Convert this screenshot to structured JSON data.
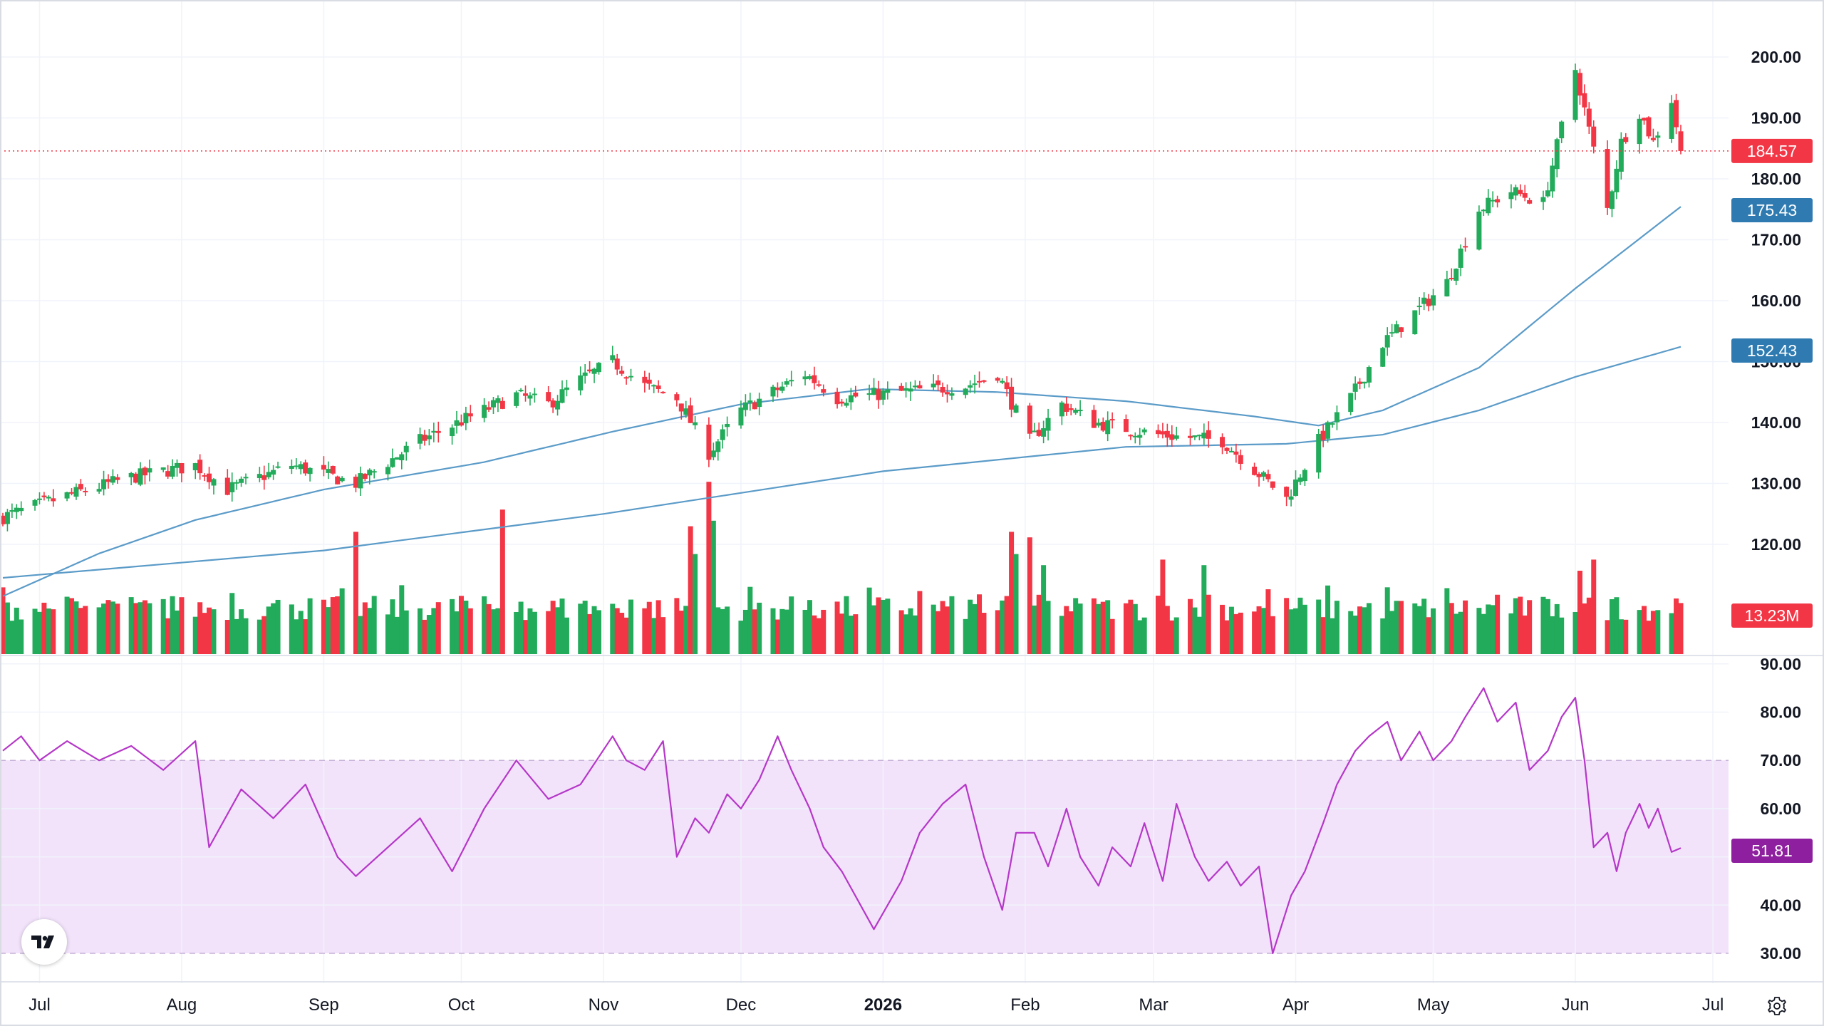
{
  "colors": {
    "up": "#22ab5a",
    "down": "#f23645",
    "ma_fast": "#5b9bc8",
    "ma_slow": "#5b9bc8",
    "rsi_line": "#b537c8",
    "rsi_band": "#f2e3fb",
    "last_price_badge": "#f23645",
    "ma_fast_badge": "#2f7bb1",
    "ma_slow_badge": "#2f7bb1",
    "volume_badge": "#f23645",
    "rsi_badge": "#8e1f9e",
    "grid": "#f0f3fa",
    "axis_text": "#131722"
  },
  "icons": {
    "logo": "tradingview-logo-icon",
    "settings": "gear-icon"
  },
  "chart_data": [
    {
      "type": "candlestick",
      "pane": "price",
      "time_range": [
        "2025-06-23",
        "2026-06-24"
      ],
      "ylim": [
        110,
        205
      ],
      "y_ticks": [
        "200.00",
        "190.00",
        "180.00",
        "170.00",
        "160.00",
        "150.00",
        "140.00",
        "130.00",
        "120.00"
      ],
      "grid": true,
      "last_price": "184.57",
      "ma_fast_value": "175.43",
      "ma_slow_value": "152.43",
      "anchors": [
        [
          "2025-06-23",
          124.5
        ],
        [
          "2025-07-07",
          128
        ],
        [
          "2025-07-21",
          131
        ],
        [
          "2025-08-04",
          133
        ],
        [
          "2025-08-11",
          129
        ],
        [
          "2025-08-25",
          133
        ],
        [
          "2025-09-08",
          130
        ],
        [
          "2025-09-22",
          137
        ],
        [
          "2025-10-06",
          142
        ],
        [
          "2025-10-13",
          144.5
        ],
        [
          "2025-10-20",
          143
        ],
        [
          "2025-10-27",
          147
        ],
        [
          "2025-11-03",
          150
        ],
        [
          "2025-11-10",
          146
        ],
        [
          "2025-11-17",
          144
        ],
        [
          "2025-11-24",
          135
        ],
        [
          "2025-12-01",
          142
        ],
        [
          "2025-12-15",
          148
        ],
        [
          "2025-12-22",
          144
        ],
        [
          "2026-01-05",
          145
        ],
        [
          "2026-01-19",
          146
        ],
        [
          "2026-01-26",
          148
        ],
        [
          "2026-02-02",
          137
        ],
        [
          "2026-02-09",
          143
        ],
        [
          "2026-02-16",
          140
        ],
        [
          "2026-03-02",
          138
        ],
        [
          "2026-03-16",
          137
        ],
        [
          "2026-03-30",
          127.5
        ],
        [
          "2026-04-06",
          137
        ],
        [
          "2026-04-13",
          144
        ],
        [
          "2026-04-20",
          153
        ],
        [
          "2026-05-04",
          163
        ],
        [
          "2026-05-11",
          175
        ],
        [
          "2026-05-18",
          178
        ],
        [
          "2026-05-25",
          176
        ],
        [
          "2026-06-01",
          198
        ],
        [
          "2026-06-04",
          188
        ],
        [
          "2026-06-08",
          175
        ],
        [
          "2026-06-11",
          186
        ],
        [
          "2026-06-15",
          191
        ],
        [
          "2026-06-18",
          186
        ],
        [
          "2026-06-22",
          193
        ],
        [
          "2026-06-24",
          184.57
        ]
      ],
      "ma_fast": [
        [
          "2025-06-23",
          111.5
        ],
        [
          "2025-07-14",
          118.5
        ],
        [
          "2025-08-04",
          124
        ],
        [
          "2025-09-01",
          129
        ],
        [
          "2025-10-06",
          133.5
        ],
        [
          "2025-11-03",
          138.5
        ],
        [
          "2025-12-01",
          143
        ],
        [
          "2025-12-29",
          145.5
        ],
        [
          "2026-01-26",
          145
        ],
        [
          "2026-02-23",
          143.5
        ],
        [
          "2026-03-23",
          141
        ],
        [
          "2026-04-06",
          139.5
        ],
        [
          "2026-04-20",
          142
        ],
        [
          "2026-05-11",
          149
        ],
        [
          "2026-06-01",
          162
        ],
        [
          "2026-06-24",
          175.43
        ]
      ],
      "ma_slow": [
        [
          "2025-06-23",
          114.5
        ],
        [
          "2025-09-01",
          119
        ],
        [
          "2025-11-01",
          125
        ],
        [
          "2026-01-01",
          132
        ],
        [
          "2026-02-23",
          136
        ],
        [
          "2026-03-30",
          136.5
        ],
        [
          "2026-04-20",
          138
        ],
        [
          "2026-05-11",
          142
        ],
        [
          "2026-06-01",
          147.5
        ],
        [
          "2026-06-24",
          152.43
        ]
      ]
    },
    {
      "type": "bar",
      "pane": "volume",
      "series_name": "Volume",
      "last_value": "13.23M",
      "units": "M",
      "spikes": [
        [
          "2025-09-08",
          22
        ],
        [
          "2025-10-10",
          26
        ],
        [
          "2025-11-20",
          23
        ],
        [
          "2025-11-21",
          18
        ],
        [
          "2025-11-24",
          31
        ],
        [
          "2025-11-25",
          24
        ],
        [
          "2026-01-29",
          22
        ],
        [
          "2026-01-30",
          18
        ],
        [
          "2026-02-02",
          21
        ],
        [
          "2026-02-05",
          16
        ],
        [
          "2026-03-03",
          17
        ],
        [
          "2026-03-12",
          16
        ],
        [
          "2026-06-02",
          15
        ],
        [
          "2026-06-05",
          17
        ]
      ]
    },
    {
      "type": "line",
      "pane": "rsi",
      "series_name": "RSI",
      "ylim": [
        28,
        93
      ],
      "y_ticks": [
        "90.00",
        "80.00",
        "70.00",
        "60.00",
        "50.00",
        "40.00",
        "30.00"
      ],
      "band": [
        30,
        70
      ],
      "last_value": "51.81",
      "values": [
        [
          "2025-06-23",
          72
        ],
        [
          "2025-06-27",
          75
        ],
        [
          "2025-07-01",
          70
        ],
        [
          "2025-07-07",
          74
        ],
        [
          "2025-07-14",
          70
        ],
        [
          "2025-07-21",
          73
        ],
        [
          "2025-07-28",
          68
        ],
        [
          "2025-08-04",
          74
        ],
        [
          "2025-08-07",
          52
        ],
        [
          "2025-08-14",
          64
        ],
        [
          "2025-08-21",
          58
        ],
        [
          "2025-08-28",
          65
        ],
        [
          "2025-09-04",
          50
        ],
        [
          "2025-09-08",
          46
        ],
        [
          "2025-09-15",
          52
        ],
        [
          "2025-09-22",
          58
        ],
        [
          "2025-09-29",
          47
        ],
        [
          "2025-10-06",
          60
        ],
        [
          "2025-10-13",
          70
        ],
        [
          "2025-10-20",
          62
        ],
        [
          "2025-10-27",
          65
        ],
        [
          "2025-11-03",
          75
        ],
        [
          "2025-11-06",
          70
        ],
        [
          "2025-11-10",
          68
        ],
        [
          "2025-11-14",
          74
        ],
        [
          "2025-11-17",
          50
        ],
        [
          "2025-11-21",
          58
        ],
        [
          "2025-11-24",
          55
        ],
        [
          "2025-11-28",
          63
        ],
        [
          "2025-12-01",
          60
        ],
        [
          "2025-12-05",
          66
        ],
        [
          "2025-12-09",
          75
        ],
        [
          "2025-12-12",
          68
        ],
        [
          "2025-12-16",
          60
        ],
        [
          "2025-12-19",
          52
        ],
        [
          "2025-12-23",
          47
        ],
        [
          "2025-12-30",
          35
        ],
        [
          "2026-01-05",
          45
        ],
        [
          "2026-01-09",
          55
        ],
        [
          "2026-01-14",
          61
        ],
        [
          "2026-01-19",
          65
        ],
        [
          "2026-01-23",
          50
        ],
        [
          "2026-01-27",
          39
        ],
        [
          "2026-01-30",
          55
        ],
        [
          "2026-02-03",
          55
        ],
        [
          "2026-02-06",
          48
        ],
        [
          "2026-02-10",
          60
        ],
        [
          "2026-02-13",
          50
        ],
        [
          "2026-02-17",
          44
        ],
        [
          "2026-02-20",
          52
        ],
        [
          "2026-02-24",
          48
        ],
        [
          "2026-02-27",
          57
        ],
        [
          "2026-03-03",
          45
        ],
        [
          "2026-03-06",
          61
        ],
        [
          "2026-03-10",
          50
        ],
        [
          "2026-03-13",
          45
        ],
        [
          "2026-03-17",
          49
        ],
        [
          "2026-03-20",
          44
        ],
        [
          "2026-03-24",
          48
        ],
        [
          "2026-03-27",
          30
        ],
        [
          "2026-03-31",
          42
        ],
        [
          "2026-04-03",
          47
        ],
        [
          "2026-04-07",
          57
        ],
        [
          "2026-04-10",
          65
        ],
        [
          "2026-04-14",
          72
        ],
        [
          "2026-04-17",
          75
        ],
        [
          "2026-04-21",
          78
        ],
        [
          "2026-04-24",
          70
        ],
        [
          "2026-04-28",
          76
        ],
        [
          "2026-05-01",
          70
        ],
        [
          "2026-05-05",
          74
        ],
        [
          "2026-05-08",
          79
        ],
        [
          "2026-05-12",
          85
        ],
        [
          "2026-05-15",
          78
        ],
        [
          "2026-05-19",
          82
        ],
        [
          "2026-05-22",
          68
        ],
        [
          "2026-05-26",
          72
        ],
        [
          "2026-05-29",
          79
        ],
        [
          "2026-06-01",
          83
        ],
        [
          "2026-06-03",
          70
        ],
        [
          "2026-06-05",
          52
        ],
        [
          "2026-06-08",
          55
        ],
        [
          "2026-06-10",
          47
        ],
        [
          "2026-06-12",
          55
        ],
        [
          "2026-06-15",
          61
        ],
        [
          "2026-06-17",
          56
        ],
        [
          "2026-06-19",
          60
        ],
        [
          "2026-06-22",
          51
        ],
        [
          "2026-06-24",
          51.81
        ]
      ]
    }
  ],
  "x_axis_labels": [
    {
      "date": "2025-07-01",
      "text": "Jul",
      "bold": false
    },
    {
      "date": "2025-08-01",
      "text": "Aug",
      "bold": false
    },
    {
      "date": "2025-09-01",
      "text": "Sep",
      "bold": false
    },
    {
      "date": "2025-10-01",
      "text": "Oct",
      "bold": false
    },
    {
      "date": "2025-11-01",
      "text": "Nov",
      "bold": false
    },
    {
      "date": "2025-12-01",
      "text": "Dec",
      "bold": false
    },
    {
      "date": "2026-01-01",
      "text": "2026",
      "bold": true
    },
    {
      "date": "2026-02-01",
      "text": "Feb",
      "bold": false
    },
    {
      "date": "2026-03-01",
      "text": "Mar",
      "bold": false
    },
    {
      "date": "2026-04-01",
      "text": "Apr",
      "bold": false
    },
    {
      "date": "2026-05-01",
      "text": "May",
      "bold": false
    },
    {
      "date": "2026-06-01",
      "text": "Jun",
      "bold": false
    },
    {
      "date": "2026-07-01",
      "text": "Jul",
      "bold": false
    }
  ]
}
